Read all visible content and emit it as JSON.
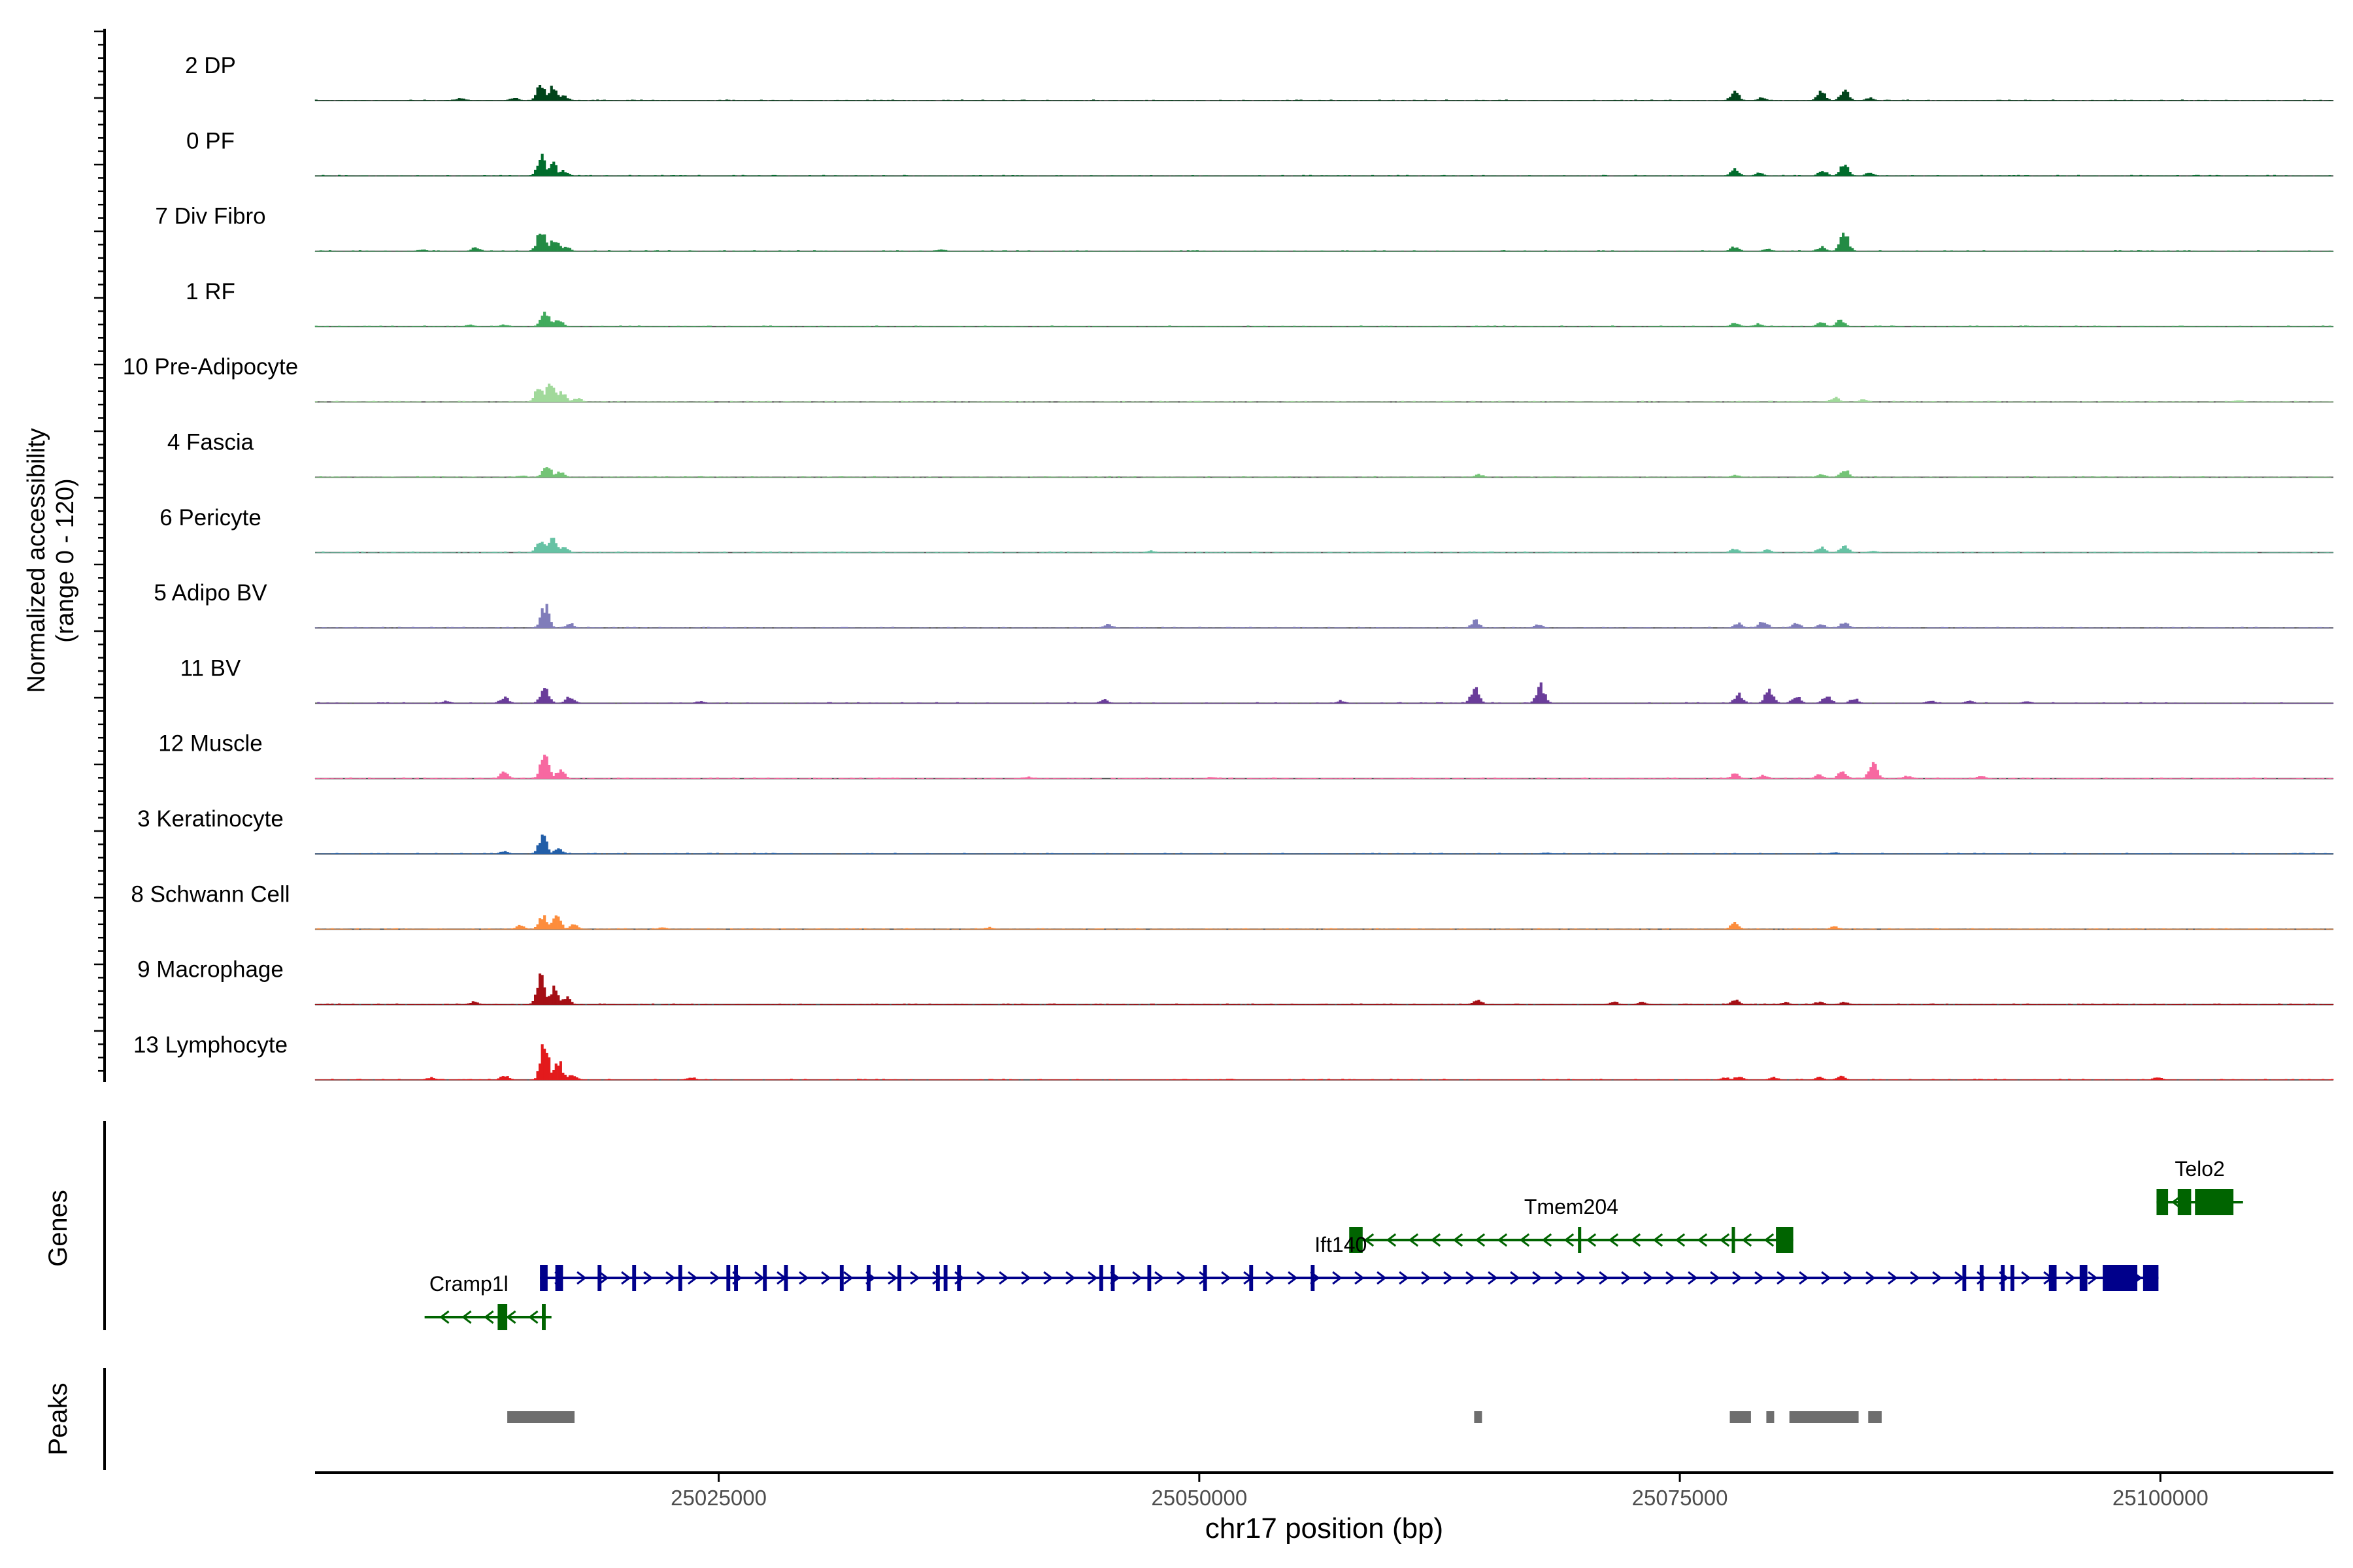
{
  "chart_data": {
    "type": "area",
    "title": "",
    "xlabel": "chr17 position (bp)",
    "ylabel": "Normalized accessibility",
    "ylabel_sub": "(range 0 - 120)",
    "genes_label": "Genes",
    "peaks_label": "Peaks",
    "ylim": [
      0,
      120
    ],
    "xlim": [
      25004000,
      25109000
    ],
    "x_ticks": [
      {
        "value": 25025000,
        "label": "25025000"
      },
      {
        "value": 25050000,
        "label": "25050000"
      },
      {
        "value": 25075000,
        "label": "25075000"
      },
      {
        "value": 25100000,
        "label": "25100000"
      }
    ],
    "tracks": [
      {
        "name": "2 DP",
        "color": "#00441b",
        "peaks": [
          [
            25011500,
            5
          ],
          [
            25014300,
            6
          ],
          [
            25015700,
            38
          ],
          [
            25016300,
            30
          ],
          [
            25016900,
            10
          ],
          [
            25077800,
            20
          ],
          [
            25079200,
            6
          ],
          [
            25082300,
            22
          ],
          [
            25083500,
            25
          ],
          [
            25084800,
            6
          ]
        ]
      },
      {
        "name": "0 PF",
        "color": "#006d2c",
        "peaks": [
          [
            25015700,
            42
          ],
          [
            25016300,
            28
          ],
          [
            25016900,
            12
          ],
          [
            25077800,
            16
          ],
          [
            25079100,
            7
          ],
          [
            25082400,
            12
          ],
          [
            25083500,
            26
          ],
          [
            25084800,
            6
          ]
        ]
      },
      {
        "name": "7 Div Fibro",
        "color": "#238b45",
        "peaks": [
          [
            25009500,
            4
          ],
          [
            25012300,
            8
          ],
          [
            25015700,
            46
          ],
          [
            25016400,
            30
          ],
          [
            25017000,
            10
          ],
          [
            25036500,
            4
          ],
          [
            25077800,
            10
          ],
          [
            25079500,
            5
          ],
          [
            25082300,
            10
          ],
          [
            25083500,
            40
          ]
        ]
      },
      {
        "name": "1 RF",
        "color": "#41ab5d",
        "peaks": [
          [
            25012000,
            4
          ],
          [
            25013800,
            4
          ],
          [
            25015900,
            36
          ],
          [
            25016600,
            18
          ],
          [
            25077800,
            8
          ],
          [
            25079000,
            6
          ],
          [
            25082300,
            10
          ],
          [
            25083300,
            16
          ]
        ]
      },
      {
        "name": "10 Pre-Adipocyte",
        "color": "#a1d99b",
        "peaks": [
          [
            25015600,
            34
          ],
          [
            25016200,
            44
          ],
          [
            25016800,
            22
          ],
          [
            25017600,
            8
          ],
          [
            25083000,
            10
          ],
          [
            25084500,
            6
          ],
          [
            25104000,
            4
          ]
        ]
      },
      {
        "name": "4 Fascia",
        "color": "#74c476",
        "peaks": [
          [
            25014700,
            4
          ],
          [
            25016000,
            28
          ],
          [
            25016700,
            12
          ],
          [
            25064500,
            6
          ],
          [
            25077800,
            5
          ],
          [
            25083500,
            18
          ],
          [
            25082300,
            8
          ]
        ]
      },
      {
        "name": "6 Pericyte",
        "color": "#66c2a4",
        "peaks": [
          [
            25015700,
            28
          ],
          [
            25016300,
            34
          ],
          [
            25016900,
            12
          ],
          [
            25047400,
            4
          ],
          [
            25077800,
            8
          ],
          [
            25079500,
            6
          ],
          [
            25082300,
            12
          ],
          [
            25083500,
            16
          ],
          [
            25085000,
            4
          ]
        ]
      },
      {
        "name": "5 Adipo BV",
        "color": "#807dba",
        "peaks": [
          [
            25015900,
            50
          ],
          [
            25017200,
            10
          ],
          [
            25045200,
            8
          ],
          [
            25064300,
            16
          ],
          [
            25067600,
            8
          ],
          [
            25078000,
            10
          ],
          [
            25079300,
            16
          ],
          [
            25081000,
            10
          ],
          [
            25082300,
            8
          ],
          [
            25083500,
            12
          ]
        ]
      },
      {
        "name": "11 BV",
        "color": "#6a3d9a",
        "peaks": [
          [
            25010800,
            5
          ],
          [
            25013800,
            14
          ],
          [
            25015900,
            36
          ],
          [
            25017200,
            16
          ],
          [
            25024000,
            5
          ],
          [
            25045000,
            8
          ],
          [
            25057300,
            6
          ],
          [
            25064300,
            34
          ],
          [
            25067700,
            40
          ],
          [
            25078000,
            20
          ],
          [
            25079600,
            30
          ],
          [
            25081000,
            16
          ],
          [
            25082600,
            18
          ],
          [
            25084000,
            12
          ],
          [
            25088000,
            6
          ],
          [
            25090000,
            5
          ],
          [
            25093000,
            5
          ]
        ]
      },
      {
        "name": "12 Muscle",
        "color": "#f768a1",
        "peaks": [
          [
            25013800,
            14
          ],
          [
            25015900,
            56
          ],
          [
            25016700,
            20
          ],
          [
            25041000,
            4
          ],
          [
            25050600,
            4
          ],
          [
            25077800,
            10
          ],
          [
            25079300,
            8
          ],
          [
            25082200,
            8
          ],
          [
            25083400,
            16
          ],
          [
            25085000,
            36
          ],
          [
            25086800,
            6
          ],
          [
            25090600,
            5
          ]
        ]
      },
      {
        "name": "3 Keratinocyte",
        "color": "#225ea8",
        "peaks": [
          [
            25013800,
            6
          ],
          [
            25015800,
            38
          ],
          [
            25016600,
            12
          ],
          [
            25068000,
            3
          ],
          [
            25083000,
            3
          ]
        ]
      },
      {
        "name": "8 Schwann Cell",
        "color": "#fd8d3c",
        "peaks": [
          [
            25014600,
            8
          ],
          [
            25015800,
            30
          ],
          [
            25016500,
            34
          ],
          [
            25017400,
            12
          ],
          [
            25022000,
            4
          ],
          [
            25039000,
            4
          ],
          [
            25077800,
            14
          ],
          [
            25083000,
            6
          ]
        ]
      },
      {
        "name": "9 Macrophage",
        "color": "#a50f15",
        "peaks": [
          [
            25012200,
            6
          ],
          [
            25015700,
            64
          ],
          [
            25016400,
            40
          ],
          [
            25017000,
            16
          ],
          [
            25064400,
            12
          ],
          [
            25071500,
            6
          ],
          [
            25073000,
            5
          ],
          [
            25077800,
            12
          ],
          [
            25080400,
            5
          ],
          [
            25082200,
            6
          ],
          [
            25083500,
            5
          ]
        ]
      },
      {
        "name": "13 Lymphocyte",
        "color": "#e31a1c",
        "peaks": [
          [
            25010000,
            6
          ],
          [
            25013800,
            10
          ],
          [
            25015900,
            88
          ],
          [
            25016600,
            40
          ],
          [
            25017300,
            14
          ],
          [
            25023500,
            6
          ],
          [
            25077300,
            5
          ],
          [
            25078000,
            8
          ],
          [
            25079800,
            6
          ],
          [
            25082200,
            6
          ],
          [
            25083300,
            8
          ],
          [
            25099800,
            6
          ]
        ]
      }
    ],
    "genes": [
      {
        "name": "Telo2",
        "strand": "-",
        "color": "#006400",
        "start": 25099800,
        "end": 25104300,
        "row": 0,
        "exons": [
          [
            25099800,
            25100400
          ],
          [
            25100900,
            25101600
          ],
          [
            25101800,
            25103800
          ]
        ]
      },
      {
        "name": "Tmem204",
        "strand": "-",
        "color": "#006400",
        "start": 25057800,
        "end": 25080900,
        "row": 1,
        "exons": [
          [
            25057800,
            25058500
          ],
          [
            25069700,
            25069800
          ],
          [
            25077700,
            25077800
          ],
          [
            25080000,
            25080900
          ]
        ]
      },
      {
        "name": "Ift140",
        "strand": "+",
        "color": "#00008b",
        "start": 25015700,
        "end": 25099900,
        "row": 2,
        "exons": [
          [
            25015700,
            25016100
          ],
          [
            25016500,
            25016900
          ],
          [
            25018700,
            25018900
          ],
          [
            25020500,
            25020700
          ],
          [
            25022900,
            25023100
          ],
          [
            25025400,
            25025600
          ],
          [
            25025800,
            25026000
          ],
          [
            25027300,
            25027500
          ],
          [
            25028400,
            25028600
          ],
          [
            25031300,
            25031500
          ],
          [
            25032700,
            25032900
          ],
          [
            25034300,
            25034500
          ],
          [
            25036300,
            25036500
          ],
          [
            25036700,
            25036900
          ],
          [
            25037400,
            25037600
          ],
          [
            25044800,
            25045000
          ],
          [
            25045400,
            25045600
          ],
          [
            25047300,
            25047500
          ],
          [
            25050200,
            25050400
          ],
          [
            25052600,
            25052800
          ],
          [
            25055800,
            25056000
          ],
          [
            25089700,
            25089900
          ],
          [
            25090600,
            25090800
          ],
          [
            25091700,
            25091900
          ],
          [
            25092200,
            25092400
          ],
          [
            25094200,
            25094600
          ],
          [
            25095800,
            25096200
          ],
          [
            25097000,
            25098800
          ],
          [
            25099100,
            25099900
          ]
        ]
      },
      {
        "name": "Cramp1l",
        "strand": "-",
        "color": "#006400",
        "start": 25009700,
        "end": 25016300,
        "row": 3,
        "exons": [
          [
            25013500,
            25014000
          ],
          [
            25015800,
            25016000
          ]
        ]
      }
    ],
    "peak_regions": [
      [
        25014000,
        25017500
      ],
      [
        25064300,
        25064700
      ],
      [
        25077600,
        25078700
      ],
      [
        25079500,
        25079900
      ],
      [
        25080700,
        25084300
      ],
      [
        25084800,
        25085500
      ]
    ]
  }
}
